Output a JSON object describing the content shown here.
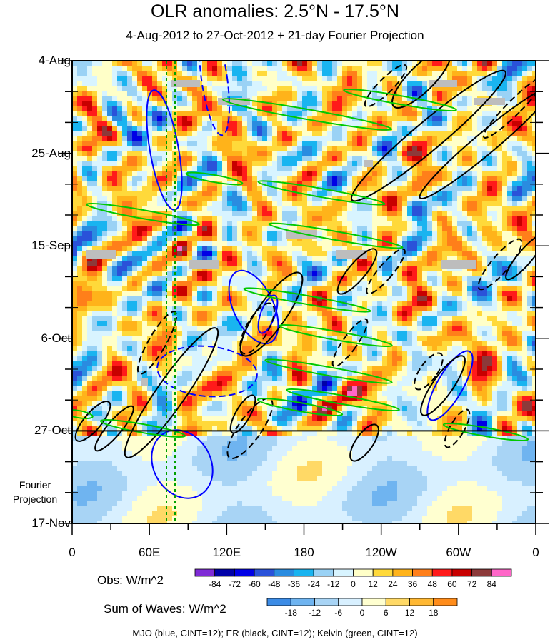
{
  "chart_data": {
    "type": "heatmap",
    "title": "OLR anomalies: 2.5°N - 17.5°N",
    "subtitle": "4-Aug-2012 to 27-Oct-2012 + 21-day Fourier Projection",
    "x_ticks": [
      "0",
      "60E",
      "120E",
      "180",
      "120W",
      "60W",
      "0"
    ],
    "x_tick_values": [
      0,
      60,
      120,
      180,
      240,
      300,
      360
    ],
    "xlim": [
      0,
      360
    ],
    "y_ticks": [
      "4-Aug",
      "25-Aug",
      "15-Sep",
      "6-Oct",
      "27-Oct",
      "17-Nov"
    ],
    "y_tick_days": [
      0,
      21,
      42,
      63,
      84,
      105
    ],
    "ylim_days": [
      0,
      105
    ],
    "observation_end_day": 84,
    "fourier_label": [
      "Fourier",
      "Projection"
    ],
    "obs_colorbar": {
      "label": "Obs: W/m^2",
      "levels": [
        -84,
        -72,
        -60,
        -48,
        -36,
        -24,
        -12,
        0,
        12,
        24,
        36,
        48,
        60,
        72,
        84
      ],
      "colors": [
        "#7f2bd6",
        "#0000a8",
        "#0000e6",
        "#2a52d9",
        "#2a8ce0",
        "#19b4f0",
        "#9ad2f5",
        "#d8f4ff",
        "#ffffc8",
        "#ffd93a",
        "#ffb31a",
        "#ff7f1a",
        "#ff1a1a",
        "#c80000",
        "#8c3a3a",
        "#ff66c8"
      ]
    },
    "waves_colorbar": {
      "label": "Sum of Waves: W/m^2",
      "levels": [
        -18,
        -12,
        -6,
        0,
        6,
        12,
        18
      ],
      "colors": [
        "#3c8ce6",
        "#6fb4f0",
        "#a8d4f5",
        "#d8f0ff",
        "#ffffd0",
        "#ffd966",
        "#ffb833",
        "#ff8c1a"
      ]
    },
    "contours": [
      {
        "wave": "MJO",
        "color": "#0000ff",
        "cint": 12
      },
      {
        "wave": "ER",
        "color": "#000000",
        "cint": 12
      },
      {
        "wave": "Kelvin",
        "color": "#00c800",
        "cint": 12
      }
    ],
    "footnote": "MJO (blue, CINT=12); ER (black, CINT=12); Kelvin (green, CINT=12)"
  }
}
